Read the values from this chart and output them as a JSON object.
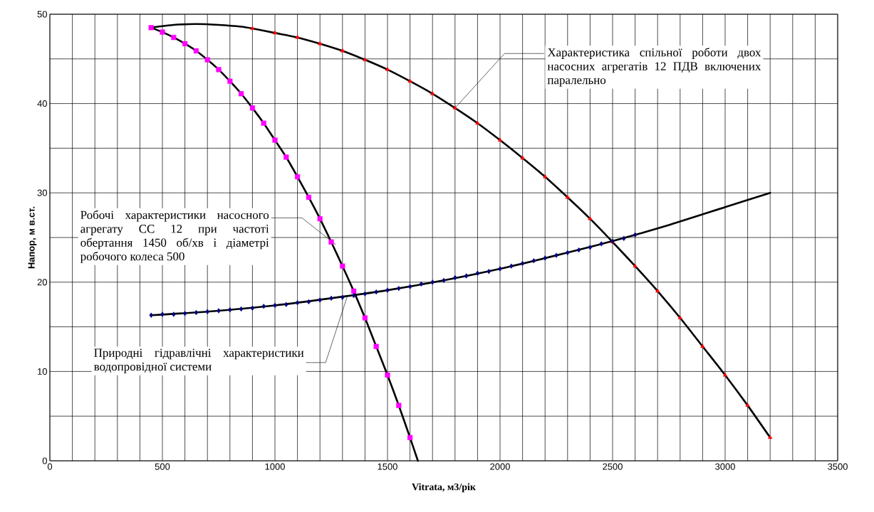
{
  "chart_data": {
    "type": "line",
    "xlabel": "Vitrata, м3/рік",
    "ylabel": "Напор, м в.ст.",
    "xlim": [
      0,
      3500
    ],
    "ylim": [
      0,
      50
    ],
    "xticks": [
      0,
      {
        "value": 100,
        "label": null
      },
      {
        "value": 200,
        "label": null
      },
      {
        "value": 300,
        "label": null
      },
      {
        "value": 400,
        "label": null
      },
      500,
      {
        "value": 600,
        "label": null
      },
      {
        "value": 700,
        "label": null
      },
      {
        "value": 800,
        "label": null
      },
      {
        "value": 900,
        "label": null
      },
      1000,
      {
        "value": 1100,
        "label": null
      },
      {
        "value": 1200,
        "label": null
      },
      {
        "value": 1300,
        "label": null
      },
      {
        "value": 1400,
        "label": null
      },
      1500,
      {
        "value": 1600,
        "label": null
      },
      {
        "value": 1700,
        "label": null
      },
      {
        "value": 1800,
        "label": null
      },
      {
        "value": 1900,
        "label": null
      },
      2000,
      {
        "value": 2100,
        "label": null
      },
      {
        "value": 2200,
        "label": null
      },
      {
        "value": 2300,
        "label": null
      },
      {
        "value": 2400,
        "label": null
      },
      2500,
      {
        "value": 2600,
        "label": null
      },
      {
        "value": 2700,
        "label": null
      },
      {
        "value": 2800,
        "label": null
      },
      {
        "value": 2900,
        "label": null
      },
      3000,
      {
        "value": 3100,
        "label": null
      },
      {
        "value": 3200,
        "label": null
      },
      {
        "value": 3300,
        "label": null
      },
      {
        "value": 3400,
        "label": null
      },
      3500
    ],
    "yticks": [
      0,
      {
        "value": 5,
        "label": null
      },
      10,
      {
        "value": 15,
        "label": null
      },
      20,
      {
        "value": 25,
        "label": null
      },
      30,
      {
        "value": 35,
        "label": null
      },
      40,
      {
        "value": 45,
        "label": null
      },
      50
    ],
    "grid": true,
    "series": [
      {
        "color": "#000000",
        "x": [
          450,
          500,
          550,
          600,
          650,
          700,
          750,
          800,
          850,
          900,
          950,
          1000,
          1050,
          1100,
          1150,
          1200,
          1250,
          1300,
          1350,
          1400,
          1450,
          1500,
          1550,
          1600,
          1635
        ],
        "values": [
          48.5,
          48.0,
          47.4,
          46.7,
          45.9,
          44.9,
          43.8,
          42.5,
          41.1,
          39.5,
          37.8,
          35.9,
          34.0,
          31.8,
          29.5,
          27.1,
          24.5,
          21.8,
          19.0,
          16.0,
          12.8,
          9.6,
          6.2,
          2.6,
          0
        ]
      },
      {
        "color": "#000000",
        "x": [
          450,
          550,
          650,
          750,
          850,
          900,
          1000,
          1100,
          1200,
          1300,
          1400,
          1500,
          1600,
          1700,
          1800,
          1900,
          2000,
          2100,
          2200,
          2300,
          2400,
          2500,
          2600,
          2700,
          2800,
          2900,
          3000,
          3100,
          3200
        ],
        "values": [
          48.5,
          48.8,
          48.9,
          48.8,
          48.6,
          48.4,
          47.9,
          47.4,
          46.7,
          45.9,
          44.9,
          43.8,
          42.5,
          41.1,
          39.5,
          37.8,
          35.9,
          33.9,
          31.8,
          29.5,
          27.1,
          24.5,
          21.8,
          19.0,
          16.0,
          12.8,
          9.6,
          6.2,
          2.6
        ]
      },
      {
        "color": "#000000",
        "x": [
          450,
          700,
          1000,
          1250,
          1500,
          1750,
          2000,
          2250,
          2500,
          2750,
          3000,
          3200
        ],
        "values": [
          16.3,
          16.7,
          17.4,
          18.2,
          19.1,
          20.2,
          21.5,
          23.0,
          24.6,
          26.4,
          28.4,
          30.0
        ]
      },
      {
        "type": "scatter",
        "marker": "square",
        "color": "#ff00ff",
        "x": [
          450,
          500,
          550,
          600,
          650,
          700,
          750,
          800,
          850,
          900,
          950,
          1000,
          1050,
          1100,
          1150,
          1200,
          1250,
          1300,
          1350,
          1400,
          1450,
          1500,
          1550,
          1600
        ],
        "values": [
          48.5,
          48.0,
          47.4,
          46.7,
          45.9,
          44.9,
          43.8,
          42.5,
          41.1,
          39.5,
          37.8,
          35.9,
          34.0,
          31.8,
          29.5,
          27.1,
          24.5,
          21.8,
          19.0,
          16.0,
          12.8,
          9.6,
          6.2,
          2.6
        ]
      },
      {
        "type": "scatter",
        "marker": "triangle",
        "color": "#ff0000",
        "x": [
          900,
          1000,
          1100,
          1200,
          1300,
          1400,
          1500,
          1600,
          1700,
          1800,
          1900,
          2000,
          2100,
          2200,
          2300,
          2400,
          2500,
          2600,
          2700,
          2800,
          2900,
          3000,
          3100,
          3200
        ],
        "values": [
          48.4,
          47.9,
          47.4,
          46.7,
          45.9,
          44.9,
          43.8,
          42.5,
          41.1,
          39.5,
          37.8,
          35.9,
          33.9,
          31.8,
          29.5,
          27.1,
          24.5,
          21.8,
          19.0,
          16.0,
          12.8,
          9.6,
          6.2,
          2.6
        ]
      },
      {
        "type": "scatter",
        "marker": "diamond",
        "color": "#000080",
        "x": [
          450,
          500,
          550,
          600,
          650,
          700,
          750,
          800,
          850,
          900,
          950,
          1000,
          1050,
          1100,
          1150,
          1200,
          1250,
          1300,
          1350,
          1400,
          1450,
          1500,
          1550,
          1600,
          1650,
          1700,
          1750,
          1800,
          1850,
          1900,
          1950,
          2000,
          2050,
          2100,
          2150,
          2200,
          2250,
          2300,
          2350,
          2400,
          2450,
          2500,
          2550,
          2600
        ],
        "values": [
          16.3,
          16.4,
          16.4,
          16.5,
          16.6,
          16.7,
          16.8,
          16.9,
          17.0,
          17.1,
          17.3,
          17.4,
          17.5,
          17.7,
          17.8,
          18.0,
          18.2,
          18.3,
          18.5,
          18.7,
          18.9,
          19.1,
          19.3,
          19.5,
          19.8,
          20.0,
          20.2,
          20.5,
          20.7,
          21.0,
          21.2,
          21.5,
          21.8,
          22.1,
          22.4,
          22.7,
          23.0,
          23.3,
          23.6,
          23.9,
          24.3,
          24.6,
          24.9,
          25.3
        ]
      }
    ],
    "annotations": [
      {
        "text": "Характеристика спільної роботи двох насосних агрегатів 12 ПДВ включених паралельно",
        "x": 1800,
        "y": 39.5
      },
      {
        "text": "Робочі характеристики насосного агрегату СС 12 при частоті обертання 1450 об/хв і діаметрі робочого колеса 500",
        "x": 1270,
        "y": 24.2
      },
      {
        "text": "Природні гідравлічні характеристики водопровідної системи",
        "x": 1320,
        "y": 18.3
      }
    ]
  }
}
